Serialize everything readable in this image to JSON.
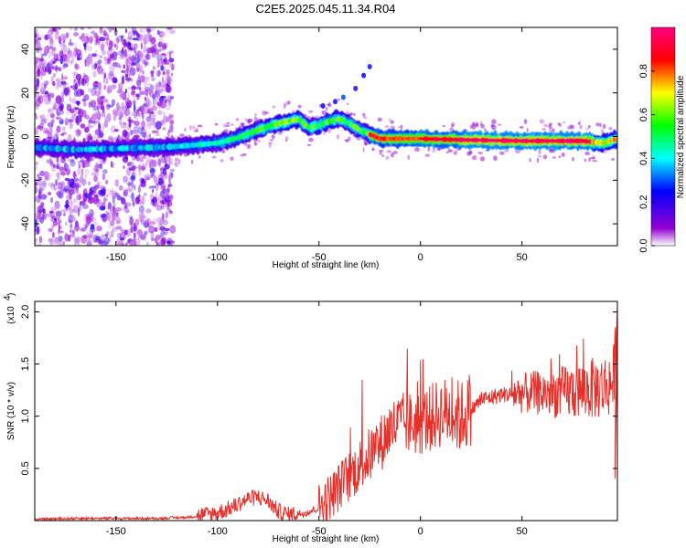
{
  "chart_data": [
    {
      "type": "heatmap",
      "title": "C2E5.2025.045.11.34.R04",
      "xlabel": "Height of straight line (km)",
      "ylabel": "Frequency (Hz)",
      "xlim": [
        -190,
        97
      ],
      "ylim": [
        -50,
        50
      ],
      "x_ticks": [
        -150,
        -100,
        -50,
        0,
        50
      ],
      "y_ticks": [
        -40,
        -20,
        0,
        20,
        40
      ],
      "colorbar": {
        "label": "Normalized spectral amplitude",
        "range": [
          0.0,
          1.0
        ],
        "ticks": [
          "0.0",
          "0.2",
          "0.4",
          "0.6",
          "0.8"
        ],
        "tick_values": [
          0.0,
          0.2,
          0.4,
          0.6,
          0.8
        ],
        "colors": [
          "#ffffff",
          "#9400d3",
          "#0000ff",
          "#00ffff",
          "#00ff00",
          "#ffff00",
          "#ff0000",
          "#ff0080"
        ]
      },
      "ridge": {
        "x": [
          -190,
          -170,
          -150,
          -130,
          -120,
          -100,
          -90,
          -80,
          -70,
          -60,
          -55,
          -50,
          -45,
          -40,
          -35,
          -30,
          -25,
          -20,
          -10,
          0,
          20,
          50,
          80,
          90,
          97
        ],
        "y": [
          -5,
          -6,
          -5.5,
          -5,
          -4.5,
          -3,
          -0.5,
          3,
          6,
          8,
          4,
          5,
          7,
          8,
          6,
          3,
          1,
          -1,
          -1,
          -1,
          -1.5,
          -2,
          -2,
          -3,
          -1
        ]
      },
      "secondary_branch": {
        "x": [
          -48,
          -42,
          -38,
          -32,
          -28,
          -25
        ],
        "y": [
          14,
          16,
          18,
          22,
          28,
          32
        ]
      }
    },
    {
      "type": "line",
      "xlabel": "Height of straight line (km)",
      "ylabel": "SNR (10 * v/v)",
      "y_multiplier": "(x10",
      "y_multiplier_exp": "4",
      "y_multiplier_close": ")",
      "xlim": [
        -190,
        97
      ],
      "ylim": [
        0,
        2.1
      ],
      "x_ticks": [
        -150,
        -100,
        -50,
        0,
        50
      ],
      "y_ticks": [
        "0.5",
        "1.0",
        "1.5",
        "2.0"
      ],
      "y_tick_values": [
        0.5,
        1.0,
        1.5,
        2.0
      ],
      "color": "#e8302a",
      "x": [
        -190,
        -170,
        -150,
        -130,
        -115,
        -105,
        -100,
        -95,
        -90,
        -85,
        -80,
        -75,
        -70,
        -65,
        -60,
        -55,
        -50,
        -45,
        -40,
        -35,
        -30,
        -25,
        -20,
        -15,
        -10,
        -5,
        0,
        5,
        10,
        15,
        20,
        25,
        30,
        40,
        50,
        60,
        70,
        80,
        90,
        95,
        97
      ],
      "y": [
        0.01,
        0.02,
        0.02,
        0.02,
        0.03,
        0.05,
        0.07,
        0.1,
        0.15,
        0.2,
        0.22,
        0.18,
        0.08,
        0.05,
        0.06,
        0.08,
        0.12,
        0.2,
        0.3,
        0.4,
        0.5,
        0.6,
        0.7,
        0.85,
        0.9,
        0.9,
        0.9,
        0.95,
        1.0,
        1.0,
        0.95,
        1.05,
        1.15,
        1.2,
        1.2,
        1.2,
        1.2,
        1.22,
        1.25,
        1.3,
        1.8
      ]
    }
  ]
}
